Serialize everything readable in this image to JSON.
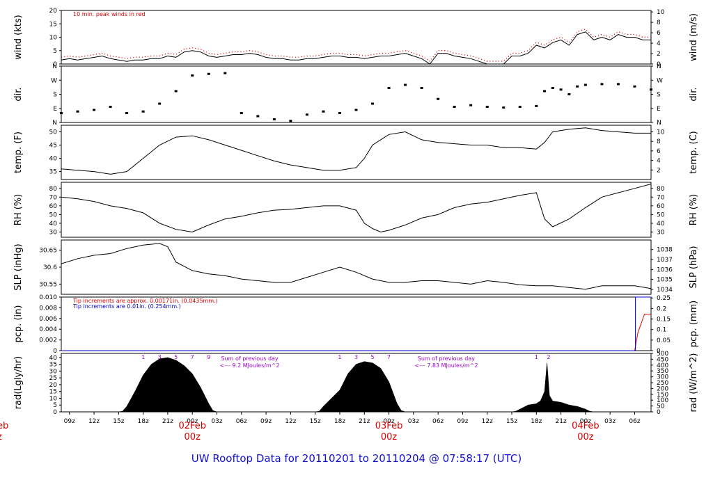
{
  "title": "UW Rooftop Data for 20110201  to  20110204 @ 07:58:17  (UTC)",
  "colors": {
    "data": "#000000",
    "peak": "#dd0000",
    "tip_blue": "#0000cc",
    "annotation": "#9900cc",
    "day": "#d40000",
    "title": "#1010d0"
  },
  "chart_data": {
    "type": "line",
    "x_ticks": [
      "09z",
      "12z",
      "15z",
      "18z",
      "21z",
      "00z",
      "03z",
      "06z",
      "09z",
      "12z",
      "15z",
      "18z",
      "21z",
      "00z",
      "03z",
      "06z",
      "09z",
      "12z",
      "15z",
      "18z",
      "21z",
      "00z",
      "03z",
      "06z"
    ],
    "x_tick_hours": [
      0,
      3,
      6,
      9,
      12,
      15,
      18,
      21,
      24,
      27,
      30,
      33,
      36,
      39,
      42,
      45,
      48,
      51,
      54,
      57,
      60,
      63,
      66,
      69
    ],
    "x_range_hours": [
      -1.0,
      71.0
    ],
    "day_labels": [
      {
        "date": "02Feb",
        "zlabel": "00z",
        "hour": 15
      },
      {
        "date": "03Feb",
        "zlabel": "00z",
        "hour": 39
      },
      {
        "date": "04Feb",
        "zlabel": "00z",
        "hour": 63
      }
    ],
    "edge_label": {
      "date": "eb",
      "zlabel": "z"
    },
    "panels": [
      {
        "id": "wind",
        "ylabel_left": "wind (kts)",
        "ylabel_right": "wind (m/s)",
        "ylim": [
          0,
          20
        ],
        "yticks": [
          0,
          5,
          10,
          15,
          20
        ],
        "right_ticks": [
          {
            "label": "0",
            "value": 0
          },
          {
            "label": "2",
            "value": 3.89
          },
          {
            "label": "4",
            "value": 7.78
          },
          {
            "label": "6",
            "value": 11.66
          },
          {
            "label": "8",
            "value": 15.55
          },
          {
            "label": "10",
            "value": 19.44
          }
        ],
        "note": "10 min. peak winds in red",
        "series": [
          {
            "name": "wind speed",
            "x": [
              -1,
              0,
              1,
              2,
              3,
              4,
              5,
              6,
              7,
              8,
              9,
              10,
              11,
              12,
              13,
              14,
              15,
              16,
              17,
              18,
              19,
              20,
              21,
              22,
              23,
              24,
              25,
              26,
              27,
              28,
              29,
              30,
              31,
              32,
              33,
              34,
              35,
              36,
              37,
              38,
              39,
              40,
              41,
              42,
              43,
              44,
              45,
              46,
              47,
              48,
              49,
              50,
              51,
              52,
              53,
              54,
              55,
              56,
              57,
              58,
              59,
              60,
              61,
              62,
              63,
              64,
              65,
              66,
              67,
              68,
              69,
              70,
              71
            ],
            "y": [
              1.5,
              2,
              1.5,
              2,
              2.5,
              3,
              2,
              1.5,
              1,
              1.5,
              1.5,
              2,
              2,
              3,
              2.5,
              4.5,
              5,
              4.5,
              3,
              2.5,
              3,
              3.5,
              3.5,
              4,
              3.5,
              2.5,
              2,
              2,
              1.5,
              1.5,
              2,
              2,
              2.5,
              3,
              3,
              2.5,
              2.5,
              2,
              2.5,
              3,
              3,
              3.5,
              4,
              3,
              2,
              0,
              4,
              4,
              3,
              2.5,
              2,
              1,
              0,
              0,
              0,
              3,
              3,
              4,
              7,
              6,
              8,
              9,
              7,
              11,
              12,
              9,
              10,
              9,
              11,
              10,
              10,
              9,
              9
            ]
          }
        ]
      },
      {
        "id": "dir",
        "ylabel_left": "dir.",
        "ylabel_right": "dir.",
        "ylim": [
          0,
          360
        ],
        "yticks_labels": [
          "N",
          "E",
          "S",
          "W",
          "N"
        ],
        "series": [
          {
            "name": "wind direction",
            "x": [
              -1,
              1,
              3,
              5,
              7,
              9,
              11,
              13,
              15,
              17,
              19,
              21,
              23,
              25,
              27,
              29,
              31,
              33,
              35,
              37,
              39,
              41,
              43,
              45,
              47,
              49,
              51,
              53,
              55,
              57,
              58,
              59,
              60,
              61,
              62,
              63,
              65,
              67,
              69,
              71
            ],
            "y": [
              60,
              70,
              80,
              100,
              60,
              70,
              120,
              200,
              300,
              310,
              315,
              60,
              40,
              20,
              10,
              50,
              70,
              60,
              80,
              120,
              220,
              240,
              220,
              150,
              100,
              110,
              100,
              95,
              100,
              105,
              200,
              220,
              210,
              180,
              230,
              240,
              245,
              245,
              230,
              210
            ]
          }
        ]
      },
      {
        "id": "temp",
        "ylabel_left": "temp. (F)",
        "ylabel_right": "temp. (C)",
        "ylim": [
          32,
          52.5
        ],
        "yticks": [
          35,
          40,
          45,
          50
        ],
        "right_ticks": [
          {
            "label": "2",
            "value": 35.6
          },
          {
            "label": "4",
            "value": 39.2
          },
          {
            "label": "6",
            "value": 42.8
          },
          {
            "label": "8",
            "value": 46.4
          },
          {
            "label": "10",
            "value": 50
          }
        ],
        "series": [
          {
            "name": "temperature",
            "x": [
              -1,
              1,
              3,
              5,
              7,
              9,
              11,
              13,
              15,
              17,
              19,
              21,
              23,
              25,
              27,
              29,
              31,
              33,
              35,
              36,
              37,
              39,
              41,
              43,
              45,
              47,
              49,
              51,
              53,
              55,
              57,
              58,
              59,
              61,
              63,
              65,
              67,
              69,
              71
            ],
            "y": [
              36,
              35.5,
              35,
              34,
              35,
              40,
              45,
              48,
              48.5,
              47,
              45,
              43,
              41,
              39,
              37.5,
              36.5,
              35.5,
              35.5,
              36.5,
              40,
              45,
              49,
              50,
              47,
              46,
              45.5,
              45,
              45,
              44,
              44,
              43.5,
              46,
              50,
              51,
              51.5,
              50.5,
              50,
              49.5,
              49.5
            ]
          }
        ]
      },
      {
        "id": "rh",
        "ylabel_left": "RH (%)",
        "ylabel_right": "RH (%)",
        "ylim": [
          24,
          87
        ],
        "yticks": [
          30,
          40,
          50,
          60,
          70,
          80
        ],
        "right_ticks": [
          {
            "label": "30",
            "value": 30
          },
          {
            "label": "40",
            "value": 40
          },
          {
            "label": "50",
            "value": 50
          },
          {
            "label": "60",
            "value": 60
          },
          {
            "label": "70",
            "value": 70
          },
          {
            "label": "80",
            "value": 80
          }
        ],
        "series": [
          {
            "name": "relative humidity",
            "x": [
              -1,
              1,
              3,
              5,
              7,
              9,
              11,
              13,
              15,
              17,
              19,
              21,
              23,
              25,
              27,
              29,
              31,
              33,
              35,
              36,
              37,
              38,
              39,
              41,
              43,
              45,
              47,
              49,
              51,
              53,
              55,
              57,
              58,
              59,
              61,
              63,
              65,
              67,
              69,
              71
            ],
            "y": [
              70,
              68,
              65,
              60,
              57,
              52,
              40,
              33,
              30,
              38,
              45,
              48,
              52,
              55,
              56,
              58,
              60,
              60,
              55,
              40,
              34,
              30,
              32,
              38,
              46,
              50,
              58,
              62,
              64,
              68,
              72,
              75,
              45,
              36,
              45,
              58,
              70,
              75,
              80,
              85
            ]
          }
        ]
      },
      {
        "id": "slp",
        "ylabel_left": "SLP (inHg)",
        "ylabel_right": "SLP (hPa)",
        "ylim": [
          30.52,
          30.68
        ],
        "yticks": [
          30.55,
          30.6,
          30.65
        ],
        "right_ticks": [
          {
            "label": "1034",
            "value": 30.534
          },
          {
            "label": "1035",
            "value": 30.564
          },
          {
            "label": "1036",
            "value": 30.593
          },
          {
            "label": "1037",
            "value": 30.623
          },
          {
            "label": "1038",
            "value": 30.652
          }
        ],
        "series": [
          {
            "name": "sea level pressure",
            "x": [
              -1,
              1,
              3,
              5,
              7,
              9,
              11,
              12,
              13,
              15,
              17,
              19,
              21,
              23,
              25,
              27,
              29,
              31,
              33,
              35,
              37,
              39,
              41,
              43,
              45,
              47,
              49,
              51,
              53,
              55,
              57,
              59,
              61,
              63,
              65,
              67,
              69,
              71
            ],
            "y": [
              30.61,
              30.625,
              30.635,
              30.64,
              30.655,
              30.665,
              30.67,
              30.66,
              30.615,
              30.59,
              30.58,
              30.575,
              30.565,
              30.56,
              30.555,
              30.555,
              30.57,
              30.585,
              30.6,
              30.585,
              30.565,
              30.555,
              30.555,
              30.56,
              30.56,
              30.555,
              30.55,
              30.56,
              30.555,
              30.548,
              30.545,
              30.545,
              30.54,
              30.535,
              30.545,
              30.545,
              30.545,
              30.537
            ]
          }
        ]
      },
      {
        "id": "pcp",
        "ylabel_left": "pcp. (in)",
        "ylabel_right": "pcp. (mm)",
        "ylim": [
          0,
          0.01
        ],
        "yticks": [
          0,
          0.002,
          0.004,
          0.006,
          0.008,
          0.01
        ],
        "ytick_labels": [
          "0",
          "0.002",
          "0.004",
          "0.006",
          "0.008",
          "0.010"
        ],
        "right_ticks": [
          {
            "label": "0",
            "value": 0
          },
          {
            "label": "0.05",
            "value": 0.00197
          },
          {
            "label": "0.1",
            "value": 0.00394
          },
          {
            "label": "0.15",
            "value": 0.0059
          },
          {
            "label": "0.2",
            "value": 0.00787
          },
          {
            "label": "0.25",
            "value": 0.00984
          }
        ],
        "notes": [
          {
            "text": "Tip increments are approx. 0.00171in. (0.0435mm.)",
            "color": "#dd0000"
          },
          {
            "text": "Tip increments are 0.01in. (0.254mm.)",
            "color": "#0000cc"
          }
        ],
        "series": [
          {
            "name": "approx tips (red)",
            "x": [
              -1,
              69.0,
              69.2,
              69.4,
              69.8,
              70.2,
              71
            ],
            "y": [
              0,
              0,
              0.0017,
              0.0034,
              0.0051,
              0.0068,
              0.0068
            ]
          },
          {
            "name": "0.01 in tips (blue)",
            "x": [
              -1,
              69.1,
              69.1,
              71
            ],
            "y": [
              0,
              0,
              0.01,
              0.01
            ]
          }
        ]
      },
      {
        "id": "rad",
        "ylabel_left": "rad(Lgly/hr)",
        "ylabel_right": "rad (W/m^2)",
        "ylim": [
          0,
          43
        ],
        "yticks": [
          0,
          5,
          10,
          15,
          20,
          25,
          30,
          35,
          40
        ],
        "right_ticks": [
          {
            "label": "0",
            "value": 0
          },
          {
            "label": "50",
            "value": 4.3
          },
          {
            "label": "100",
            "value": 8.6
          },
          {
            "label": "150",
            "value": 12.9
          },
          {
            "label": "200",
            "value": 17.2
          },
          {
            "label": "250",
            "value": 21.5
          },
          {
            "label": "300",
            "value": 25.8
          },
          {
            "label": "350",
            "value": 30.1
          },
          {
            "label": "400",
            "value": 34.4
          },
          {
            "label": "450",
            "value": 38.7
          },
          {
            "label": "500",
            "value": 43
          }
        ],
        "hour_marks": [
          {
            "label": "1",
            "hour": 9
          },
          {
            "label": "3",
            "hour": 11
          },
          {
            "label": "5",
            "hour": 13
          },
          {
            "label": "7",
            "hour": 15
          },
          {
            "label": "9",
            "hour": 17
          },
          {
            "label": "1",
            "hour": 33
          },
          {
            "label": "3",
            "hour": 35
          },
          {
            "label": "5",
            "hour": 37
          },
          {
            "label": "7",
            "hour": 39
          },
          {
            "label": "1",
            "hour": 57
          },
          {
            "label": "2",
            "hour": 58.5
          }
        ],
        "notes": [
          {
            "line1": "Sum of previous day",
            "line2": "<--- 9.2 MJoules/m^2",
            "hour": 22
          },
          {
            "line1": "Sum of previous day",
            "line2": "<--- 7.83 MJoules/m^2",
            "hour": 46
          }
        ],
        "series": [
          {
            "name": "solar radiation",
            "x": [
              -1,
              6,
              6.5,
              7,
              8,
              9,
              10,
              11,
              12,
              13,
              14,
              15,
              16,
              17,
              17.5,
              18,
              30,
              30.5,
              31,
              32,
              33,
              34,
              35,
              36,
              37,
              38,
              39,
              40,
              40.5,
              41,
              54,
              54.5,
              55,
              56,
              57,
              57.5,
              58,
              58.3,
              58.6,
              59,
              60,
              61,
              62,
              63,
              63.5,
              64,
              71
            ],
            "y": [
              0,
              0,
              0.5,
              4,
              15,
              27,
              35,
              39,
              40,
              38,
              34,
              28,
              18,
              6,
              1,
              0,
              0,
              0.5,
              4,
              10,
              16,
              28,
              35,
              37,
              36,
              32,
              22,
              6,
              1,
              0,
              0,
              0.5,
              2,
              5,
              6,
              8,
              15,
              36,
              12,
              8,
              7,
              5,
              4,
              2,
              0.5,
              0,
              0
            ]
          }
        ]
      }
    ]
  }
}
